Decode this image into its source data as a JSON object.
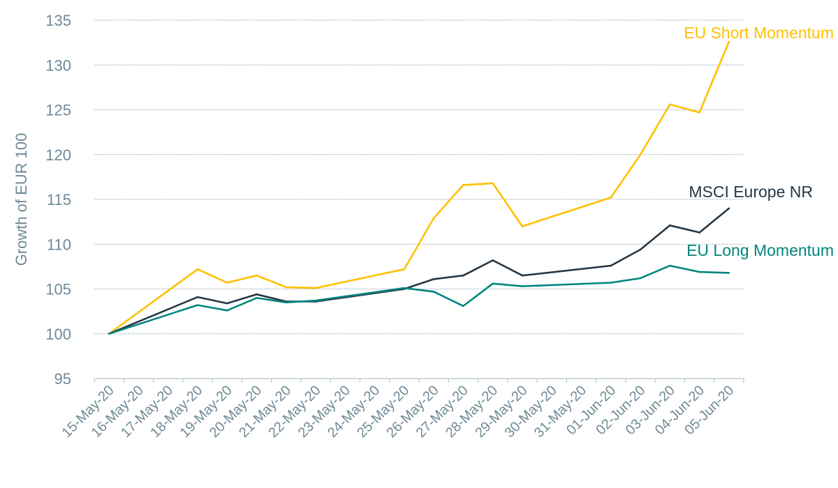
{
  "chart_data": {
    "type": "line",
    "title": "",
    "xlabel": "",
    "ylabel": "Growth of EUR 100",
    "ylim": [
      95,
      135
    ],
    "yticks": [
      95,
      100,
      105,
      110,
      115,
      120,
      125,
      130,
      135
    ],
    "grid": "horizontal dotted",
    "categories": [
      "15-May-20",
      "16-May-20",
      "17-May-20",
      "18-May-20",
      "19-May-20",
      "20-May-20",
      "21-May-20",
      "22-May-20",
      "23-May-20",
      "24-May-20",
      "25-May-20",
      "26-May-20",
      "27-May-20",
      "28-May-20",
      "29-May-20",
      "30-May-20",
      "31-May-20",
      "01-Jun-20",
      "02-Jun-20",
      "03-Jun-20",
      "04-Jun-20",
      "05-Jun-20"
    ],
    "series": [
      {
        "name": "EU Short Momentum",
        "color": "#FFC000",
        "values": [
          100,
          null,
          null,
          107.2,
          105.7,
          106.5,
          105.2,
          105.1,
          null,
          null,
          107.2,
          112.9,
          116.6,
          116.8,
          112.0,
          null,
          null,
          115.2,
          120.0,
          125.6,
          124.7,
          132.6
        ]
      },
      {
        "name": "MSCI Europe NR",
        "color": "#253746",
        "values": [
          100,
          null,
          null,
          104.1,
          103.4,
          104.4,
          103.6,
          103.6,
          null,
          null,
          105.0,
          106.1,
          106.5,
          108.2,
          106.5,
          null,
          null,
          107.6,
          109.4,
          112.1,
          111.3,
          114.0
        ]
      },
      {
        "name": "EU Long Momentum",
        "color": "#00857D",
        "values": [
          100,
          null,
          null,
          103.2,
          102.6,
          104.0,
          103.5,
          103.7,
          null,
          null,
          105.1,
          104.7,
          103.1,
          105.6,
          105.3,
          null,
          null,
          105.7,
          106.2,
          107.6,
          106.9,
          106.8
        ]
      }
    ]
  }
}
